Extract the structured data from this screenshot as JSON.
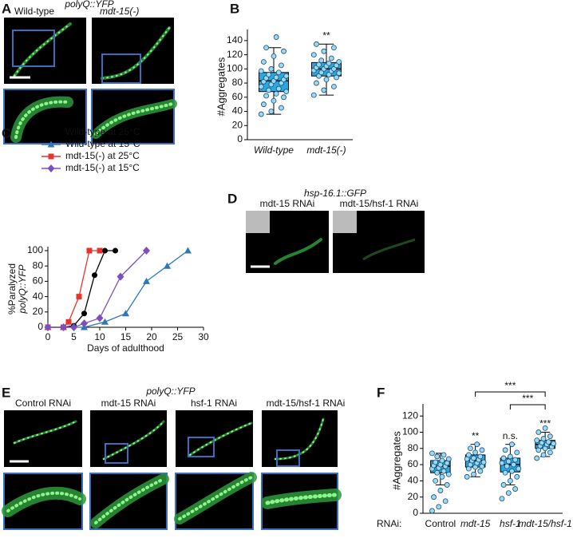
{
  "panel_labels": [
    "A",
    "B",
    "C",
    "D",
    "E",
    "F"
  ],
  "panel_a": {
    "marker": "polyQ::YFP",
    "labels": [
      "Wild-type",
      "mdt-15(-)"
    ]
  },
  "panel_d": {
    "marker": "hsp-16.1::GFP",
    "labels": [
      "mdt-15 RNAi",
      "mdt-15/hsf-1 RNAi"
    ]
  },
  "panel_e": {
    "marker": "polyQ::YFP",
    "labels": [
      "Control RNAi",
      "mdt-15 RNAi",
      "hsf-1 RNAi",
      "mdt-15/hsf-1 RNAi"
    ]
  },
  "chart_data": [
    {
      "type": "box",
      "ylabel": "#Aggregates",
      "categories": [
        "Wild-type",
        "mdt-15(-)"
      ],
      "color": "#29a8e0",
      "point_color": "#9ad8f5",
      "ylim": [
        0,
        150
      ],
      "yticks": [
        0,
        20,
        40,
        60,
        80,
        100,
        120,
        140
      ],
      "boxes": [
        {
          "min": 36,
          "q1": 68,
          "median": 83,
          "q3": 95,
          "max": 130,
          "points": [
            36,
            40,
            45,
            50,
            55,
            60,
            62,
            65,
            68,
            70,
            72,
            75,
            78,
            80,
            82,
            83,
            85,
            87,
            88,
            90,
            92,
            95,
            97,
            100,
            105,
            110,
            118,
            125,
            130,
            145
          ]
        },
        {
          "min": 63,
          "q1": 90,
          "median": 100,
          "q3": 109,
          "max": 135,
          "annotation": "**",
          "points": [
            63,
            70,
            75,
            80,
            85,
            88,
            90,
            92,
            94,
            95,
            97,
            98,
            100,
            100,
            102,
            104,
            105,
            106,
            108,
            110,
            112,
            115,
            120,
            125,
            130,
            135
          ]
        }
      ]
    },
    {
      "type": "line",
      "ylabel": [
        "%Paralyzed",
        "polyQ::YFP"
      ],
      "xlabel": "Days of adulthood",
      "xlim": [
        0,
        30
      ],
      "xticks": [
        0,
        5,
        10,
        15,
        20,
        25,
        30
      ],
      "ylim": [
        0,
        100
      ],
      "yticks": [
        0,
        20,
        40,
        60,
        80,
        100
      ],
      "series": [
        {
          "name": "Wild-type at 25°C",
          "color": "#000000",
          "marker": "circle",
          "x": [
            0,
            3,
            5,
            7,
            9,
            11,
            13
          ],
          "values": [
            0,
            0,
            2,
            18,
            68,
            100,
            100
          ]
        },
        {
          "name": "Wild-type at 15°C",
          "color": "#2e78b7",
          "marker": "triangle",
          "x": [
            0,
            3,
            7,
            11,
            15,
            19,
            23,
            27
          ],
          "values": [
            0,
            0,
            0,
            7,
            18,
            60,
            80,
            100
          ]
        },
        {
          "name": "mdt-15(-) at 25°C",
          "color": "#e8322c",
          "marker": "square",
          "x": [
            0,
            3,
            4,
            6,
            8,
            10
          ],
          "values": [
            0,
            0,
            7,
            40,
            100,
            100
          ]
        },
        {
          "name": "mdt-15(-) at 15°C",
          "color": "#7b4fbf",
          "marker": "diamond",
          "x": [
            0,
            3,
            5,
            7,
            10,
            14,
            19
          ],
          "values": [
            0,
            0,
            0,
            5,
            12,
            66,
            100
          ]
        }
      ]
    },
    {
      "type": "box",
      "ylabel": "#Aggregates",
      "xlabel": "RNAi:",
      "categories": [
        "Control",
        "mdt-15",
        "hsf-1",
        "mdt-15/hsf-1"
      ],
      "color": "#29a8e0",
      "point_color": "#9ad8f5",
      "ylim": [
        0,
        130
      ],
      "yticks": [
        0,
        20,
        40,
        60,
        80,
        100,
        120
      ],
      "boxes": [
        {
          "min": 35,
          "q1": 50,
          "median": 58,
          "q3": 65,
          "max": 74,
          "points": [
            3,
            8,
            15,
            20,
            28,
            35,
            40,
            45,
            48,
            50,
            52,
            55,
            56,
            58,
            59,
            60,
            62,
            63,
            65,
            67,
            70,
            72,
            74
          ]
        },
        {
          "min": 45,
          "q1": 57,
          "median": 65,
          "q3": 72,
          "max": 85,
          "annotation": "**",
          "points": [
            45,
            48,
            52,
            55,
            57,
            58,
            60,
            62,
            63,
            65,
            66,
            67,
            68,
            70,
            72,
            75,
            78,
            80,
            85
          ]
        },
        {
          "min": 35,
          "q1": 51,
          "median": 60,
          "q3": 68,
          "max": 85,
          "annotation": "n.s.",
          "points": [
            18,
            25,
            30,
            35,
            40,
            45,
            50,
            52,
            55,
            58,
            60,
            62,
            64,
            66,
            68,
            70,
            75,
            78,
            85
          ]
        },
        {
          "min": 70,
          "q1": 80,
          "median": 85,
          "q3": 90,
          "max": 100,
          "annotation": "***",
          "points": [
            68,
            72,
            75,
            78,
            80,
            82,
            83,
            85,
            86,
            87,
            88,
            90,
            92,
            95,
            100,
            105
          ]
        }
      ],
      "comparisons": [
        {
          "from": 1,
          "to": 3,
          "text": "***"
        },
        {
          "from": 2,
          "to": 3,
          "text": "***"
        }
      ]
    }
  ]
}
